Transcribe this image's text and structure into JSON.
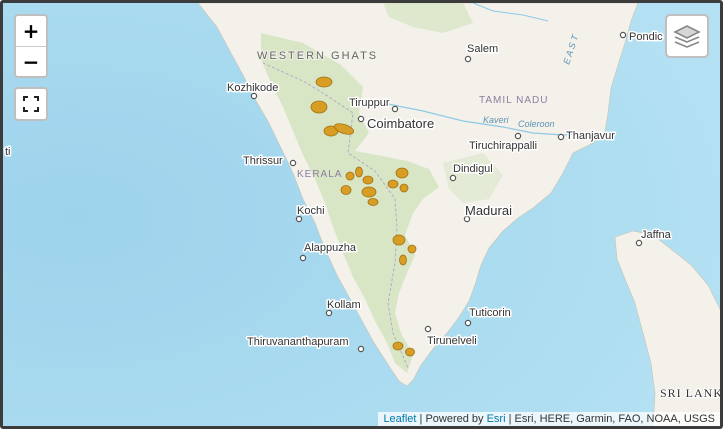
{
  "map": {
    "controls": {
      "zoom_in": "+",
      "zoom_out": "−",
      "fullscreen_icon": "fullscreen-icon",
      "layers_icon": "layers-icon"
    },
    "labels": {
      "western_ghats": "WESTERN GHATS",
      "kerala": "KERALA",
      "tamil_nadu": "TAMIL NADU",
      "kaveri": "Kaveri",
      "coleroon": "Coleroon",
      "sri_lanka": "SRI LANK",
      "ti_partial": "ti",
      "east_partial": "E A S T"
    },
    "cities": {
      "salem": "Salem",
      "pondicherry": "Pondic",
      "kozhikode": "Kozhikode",
      "tiruppur": "Tiruppur",
      "coimbatore": "Coimbatore",
      "tiruchirappalli": "Tiruchirappalli",
      "thanjavur": "Thanjavur",
      "thrissur": "Thrissur",
      "dindigul": "Dindigul",
      "kochi": "Kochi",
      "madurai": "Madurai",
      "jaffna": "Jaffna",
      "alappuzha": "Alappuzha",
      "kollam": "Kollam",
      "tuticorin": "Tuticorin",
      "tirunelveli": "Tirunelveli",
      "thiruvananthapuram": "Thiruvananthapuram"
    },
    "colors": {
      "sea": "#a6d9ef",
      "land": "#f3f1ea",
      "forest": "#d3e4bf",
      "patch": "#d79a1c"
    }
  },
  "attribution": {
    "leaflet": "Leaflet",
    "sep1": " | Powered by ",
    "esri": "Esri",
    "rest": " | Esri, HERE, Garmin, FAO, NOAA, USGS"
  }
}
